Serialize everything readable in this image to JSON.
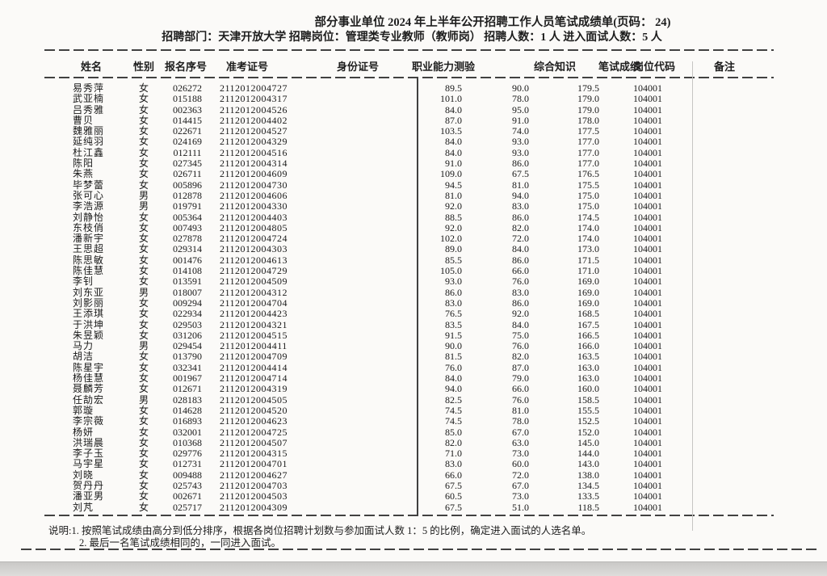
{
  "header": {
    "title": "部分事业单位 2024 年上半年公开招聘工作人员笔试成绩单(页码：  24)",
    "info": "招聘部门：天津开放大学  招聘岗位：管理类专业教师（教师岗）  招聘人数：1 人  进入面试人数：5 人"
  },
  "table": {
    "columns": [
      "姓名",
      "性别",
      "报名序号",
      "准考证号",
      "身份证号",
      "职业能力测验",
      "综合知识",
      "笔试成绩",
      "岗位代码",
      "备注"
    ],
    "row_fields": [
      "name",
      "gender",
      "reg_no",
      "ticket_no",
      "ability_score",
      "knowledge_score",
      "written_total",
      "position_code"
    ],
    "rows": [
      [
        "易秀萍",
        "女",
        "026272",
        "2112012004727",
        "89.5",
        "90.0",
        "179.5",
        "104001"
      ],
      [
        "武亚楠",
        "女",
        "015188",
        "2112012004317",
        "101.0",
        "78.0",
        "179.0",
        "104001"
      ],
      [
        "吕秀雅",
        "女",
        "002363",
        "2112012004526",
        "84.0",
        "95.0",
        "179.0",
        "104001"
      ],
      [
        "曹贝",
        "女",
        "014415",
        "2112012004402",
        "87.0",
        "91.0",
        "178.0",
        "104001"
      ],
      [
        "魏雅丽",
        "女",
        "022671",
        "2112012004527",
        "103.5",
        "74.0",
        "177.5",
        "104001"
      ],
      [
        "延纯羽",
        "女",
        "024169",
        "2112012004329",
        "84.0",
        "93.0",
        "177.0",
        "104001"
      ],
      [
        "杜江鑫",
        "女",
        "012111",
        "2112012004516",
        "84.0",
        "93.0",
        "177.0",
        "104001"
      ],
      [
        "陈阳",
        "女",
        "027345",
        "2112012004314",
        "91.0",
        "86.0",
        "177.0",
        "104001"
      ],
      [
        "朱燕",
        "女",
        "026711",
        "2112012004609",
        "109.0",
        "67.5",
        "176.5",
        "104001"
      ],
      [
        "毕梦蕾",
        "女",
        "005896",
        "2112012004730",
        "94.5",
        "81.0",
        "175.5",
        "104001"
      ],
      [
        "张可心",
        "男",
        "012878",
        "2112012004606",
        "81.0",
        "94.0",
        "175.0",
        "104001"
      ],
      [
        "李浩源",
        "男",
        "019791",
        "2112012004330",
        "92.0",
        "83.0",
        "175.0",
        "104001"
      ],
      [
        "刘静怡",
        "女",
        "005364",
        "2112012004403",
        "88.5",
        "86.0",
        "174.5",
        "104001"
      ],
      [
        "东枝俏",
        "女",
        "007493",
        "2112012004805",
        "92.0",
        "82.0",
        "174.0",
        "104001"
      ],
      [
        "潘新宇",
        "女",
        "027878",
        "2112012004724",
        "102.0",
        "72.0",
        "174.0",
        "104001"
      ],
      [
        "王思超",
        "女",
        "029314",
        "2112012004303",
        "89.0",
        "84.0",
        "173.0",
        "104001"
      ],
      [
        "陈思敏",
        "女",
        "001476",
        "2112012004613",
        "85.5",
        "86.0",
        "171.5",
        "104001"
      ],
      [
        "陈佳慧",
        "女",
        "014108",
        "2112012004729",
        "105.0",
        "66.0",
        "171.0",
        "104001"
      ],
      [
        "李钊",
        "女",
        "013591",
        "2112012004509",
        "93.0",
        "76.0",
        "169.0",
        "104001"
      ],
      [
        "刘东亚",
        "男",
        "018007",
        "2112012004312",
        "86.0",
        "83.0",
        "169.0",
        "104001"
      ],
      [
        "刘影丽",
        "女",
        "009294",
        "2112012004704",
        "83.0",
        "86.0",
        "169.0",
        "104001"
      ],
      [
        "王添琪",
        "女",
        "022934",
        "2112012004423",
        "76.5",
        "92.0",
        "168.5",
        "104001"
      ],
      [
        "于洪坤",
        "女",
        "029503",
        "2112012004321",
        "83.5",
        "84.0",
        "167.5",
        "104001"
      ],
      [
        "朱昱颖",
        "女",
        "031206",
        "2112012004515",
        "91.5",
        "75.0",
        "166.5",
        "104001"
      ],
      [
        "马力",
        "男",
        "029454",
        "2112012004411",
        "90.0",
        "76.0",
        "166.0",
        "104001"
      ],
      [
        "胡洁",
        "女",
        "013790",
        "2112012004709",
        "81.5",
        "82.0",
        "163.5",
        "104001"
      ],
      [
        "陈星宇",
        "女",
        "032341",
        "2112012004414",
        "76.0",
        "87.0",
        "163.0",
        "104001"
      ],
      [
        "杨佳慧",
        "女",
        "001967",
        "2112012004714",
        "84.0",
        "79.0",
        "163.0",
        "104001"
      ],
      [
        "聂麟芳",
        "女",
        "012671",
        "2112012004319",
        "94.0",
        "66.0",
        "160.0",
        "104001"
      ],
      [
        "任劼宏",
        "男",
        "028183",
        "2112012004505",
        "82.5",
        "76.0",
        "158.5",
        "104001"
      ],
      [
        "郭璇",
        "女",
        "014628",
        "2112012004520",
        "74.5",
        "81.0",
        "155.5",
        "104001"
      ],
      [
        "李宗薇",
        "女",
        "016893",
        "2112012004623",
        "74.5",
        "78.0",
        "152.5",
        "104001"
      ],
      [
        "杨妍",
        "女",
        "032001",
        "2112012004725",
        "85.0",
        "67.0",
        "152.0",
        "104001"
      ],
      [
        "洪瑞晨",
        "女",
        "010368",
        "2112012004507",
        "82.0",
        "63.0",
        "145.0",
        "104001"
      ],
      [
        "李子玉",
        "女",
        "029776",
        "2112012004315",
        "71.0",
        "73.0",
        "144.0",
        "104001"
      ],
      [
        "马宇星",
        "女",
        "012731",
        "2112012004701",
        "83.0",
        "60.0",
        "143.0",
        "104001"
      ],
      [
        "刘晓",
        "女",
        "009488",
        "2112012004627",
        "66.0",
        "72.0",
        "138.0",
        "104001"
      ],
      [
        "贺丹丹",
        "女",
        "025743",
        "2112012004703",
        "67.5",
        "67.0",
        "134.5",
        "104001"
      ],
      [
        "潘亚男",
        "女",
        "002671",
        "2112012004503",
        "60.5",
        "73.0",
        "133.5",
        "104001"
      ],
      [
        "刘芃",
        "女",
        "025717",
        "2112012004309",
        "67.5",
        "51.0",
        "118.5",
        "104001"
      ]
    ]
  },
  "notes": [
    "说明:1. 按照笔试成绩由高分到低分排序，根据各岗位招聘计划数与参加面试人数 1：5 的比例，确定进入面试的人选名单。",
    "2. 最后一名笔试成绩相同的，一同进入面试。"
  ]
}
